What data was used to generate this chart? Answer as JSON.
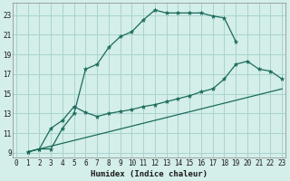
{
  "xlabel": "Humidex (Indice chaleur)",
  "bg_color": "#d4eeea",
  "grid_color": "#a8d4ce",
  "line_color": "#1a6b5a",
  "xlim": [
    -0.3,
    23.3
  ],
  "ylim": [
    8.5,
    24.2
  ],
  "xticks": [
    0,
    1,
    2,
    3,
    4,
    5,
    6,
    7,
    8,
    9,
    10,
    11,
    12,
    13,
    14,
    15,
    16,
    17,
    18,
    19,
    20,
    21,
    22,
    23
  ],
  "yticks": [
    9,
    11,
    13,
    15,
    17,
    19,
    21,
    23
  ],
  "series1_x": [
    1,
    2,
    3,
    4,
    5,
    6,
    7,
    8,
    9,
    10,
    11,
    12,
    13,
    14,
    15,
    16,
    17,
    18,
    19
  ],
  "series1_y": [
    9.1,
    9.4,
    9.4,
    11.5,
    13.0,
    17.5,
    18.0,
    19.7,
    20.8,
    21.3,
    22.5,
    23.5,
    23.2,
    23.2,
    23.2,
    23.2,
    22.9,
    22.7,
    20.3
  ],
  "series2_x": [
    1,
    2,
    3,
    4,
    5,
    6,
    7,
    8,
    9,
    10,
    11,
    12,
    13,
    14,
    15,
    16,
    17,
    18,
    19,
    20,
    21,
    22,
    23
  ],
  "series2_y": [
    9.1,
    9.4,
    11.5,
    12.3,
    13.7,
    13.1,
    12.7,
    13.0,
    13.2,
    13.4,
    13.7,
    13.9,
    14.2,
    14.5,
    14.8,
    15.2,
    15.5,
    16.5,
    18.0,
    18.3,
    17.5,
    17.3,
    16.5
  ],
  "series3_x": [
    1,
    23
  ],
  "series3_y": [
    9.1,
    15.5
  ]
}
